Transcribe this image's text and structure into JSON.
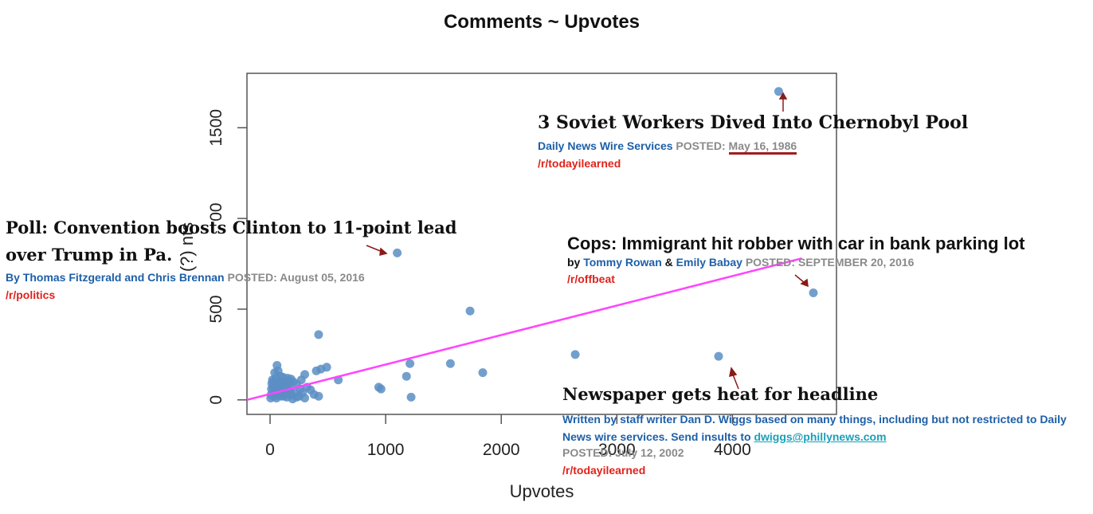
{
  "chart_data": {
    "type": "scatter",
    "title": "Comments ~ Upvotes",
    "xlabel": "Upvotes",
    "ylabel": "(?) nts",
    "xlim": [
      -200,
      4900
    ],
    "ylim": [
      -80,
      1800
    ],
    "x_ticks": [
      0,
      1000,
      2000,
      4000
    ],
    "y_ticks": [
      0,
      500,
      1500
    ],
    "y_tick_partial": "00",
    "x_tick_partial": "3000",
    "point_color": "#5b8ec4",
    "line_color": "#ff44ff",
    "fit_line": {
      "x": [
        -200,
        4600
      ],
      "y": [
        0,
        780
      ]
    },
    "points": [
      {
        "x": 4400,
        "y": 1700
      },
      {
        "x": 1100,
        "y": 810
      },
      {
        "x": 4700,
        "y": 590
      },
      {
        "x": 1730,
        "y": 490
      },
      {
        "x": 3880,
        "y": 240
      },
      {
        "x": 2640,
        "y": 250
      },
      {
        "x": 420,
        "y": 360
      },
      {
        "x": 1210,
        "y": 200
      },
      {
        "x": 1560,
        "y": 200
      },
      {
        "x": 1840,
        "y": 150
      },
      {
        "x": 1180,
        "y": 130
      },
      {
        "x": 1220,
        "y": 15
      },
      {
        "x": 940,
        "y": 70
      },
      {
        "x": 960,
        "y": 60
      },
      {
        "x": 590,
        "y": 110
      },
      {
        "x": 490,
        "y": 180
      },
      {
        "x": 440,
        "y": 170
      },
      {
        "x": 400,
        "y": 160
      },
      {
        "x": 300,
        "y": 140
      },
      {
        "x": 270,
        "y": 110
      },
      {
        "x": 230,
        "y": 85
      },
      {
        "x": 280,
        "y": 40
      },
      {
        "x": 320,
        "y": 70
      },
      {
        "x": 350,
        "y": 55
      },
      {
        "x": 380,
        "y": 30
      },
      {
        "x": 420,
        "y": 20
      },
      {
        "x": 300,
        "y": 10
      },
      {
        "x": 250,
        "y": 20
      },
      {
        "x": 210,
        "y": 40
      },
      {
        "x": 60,
        "y": 190
      },
      {
        "x": 40,
        "y": 150
      },
      {
        "x": 70,
        "y": 160
      },
      {
        "x": 110,
        "y": 125
      },
      {
        "x": 150,
        "y": 120
      },
      {
        "x": 180,
        "y": 115
      },
      {
        "x": 200,
        "y": 100
      },
      {
        "x": 15,
        "y": 90
      },
      {
        "x": 25,
        "y": 70
      },
      {
        "x": 35,
        "y": 50
      },
      {
        "x": 45,
        "y": 30
      },
      {
        "x": 55,
        "y": 10
      },
      {
        "x": 65,
        "y": 80
      },
      {
        "x": 75,
        "y": 60
      },
      {
        "x": 85,
        "y": 40
      },
      {
        "x": 95,
        "y": 20
      },
      {
        "x": 105,
        "y": 95
      },
      {
        "x": 115,
        "y": 75
      },
      {
        "x": 125,
        "y": 55
      },
      {
        "x": 135,
        "y": 35
      },
      {
        "x": 145,
        "y": 15
      },
      {
        "x": 155,
        "y": 85
      },
      {
        "x": 165,
        "y": 65
      },
      {
        "x": 175,
        "y": 45
      },
      {
        "x": 185,
        "y": 25
      },
      {
        "x": 195,
        "y": 5
      },
      {
        "x": 10,
        "y": 30
      },
      {
        "x": 20,
        "y": 110
      },
      {
        "x": 30,
        "y": 100
      },
      {
        "x": 50,
        "y": 120
      },
      {
        "x": 80,
        "y": 100
      },
      {
        "x": 90,
        "y": 130
      },
      {
        "x": 100,
        "y": 40
      },
      {
        "x": 120,
        "y": 20
      },
      {
        "x": 140,
        "y": 60
      },
      {
        "x": 160,
        "y": 30
      },
      {
        "x": 170,
        "y": 100
      },
      {
        "x": 5,
        "y": 10
      },
      {
        "x": 12,
        "y": 60
      },
      {
        "x": 28,
        "y": 20
      },
      {
        "x": 42,
        "y": 80
      },
      {
        "x": 58,
        "y": 45
      },
      {
        "x": 72,
        "y": 25
      },
      {
        "x": 88,
        "y": 70
      },
      {
        "x": 130,
        "y": 85
      },
      {
        "x": 230,
        "y": 15
      },
      {
        "x": 260,
        "y": 60
      }
    ]
  },
  "annotations": {
    "chernobyl": {
      "headline": "3 Soviet Workers Dived Into Chernobyl Pool",
      "author": "Daily News Wire Services",
      "posted_label": "POSTED:",
      "date": "May 16, 1986",
      "subreddit": "/r/todayilearned"
    },
    "convention": {
      "headline_line1": "Poll: Convention boosts Clinton to 11-point lead",
      "headline_line2": "over Trump in Pa.",
      "author": "By Thomas Fitzgerald and Chris Brennan",
      "posted": "POSTED: August 05, 2016",
      "subreddit": "/r/politics"
    },
    "cops": {
      "headline": "Cops: Immigrant hit robber with car in bank parking lot",
      "by": "by",
      "author1": "Tommy Rowan",
      "amp": "&",
      "author2": "Emily Babay",
      "posted": "POSTED: SEPTEMBER 20, 2016",
      "subreddit": "/r/offbeat"
    },
    "newspaper": {
      "headline": "Newspaper gets heat for headline",
      "credit": "Written by staff writer Dan D. Wiggs based on many things, including but not restricted to Daily News wire services. Send insults to",
      "email": "dwiggs@phillynews.com",
      "posted": "POSTED: July 12, 2002",
      "subreddit": "/r/todayilearned"
    }
  }
}
